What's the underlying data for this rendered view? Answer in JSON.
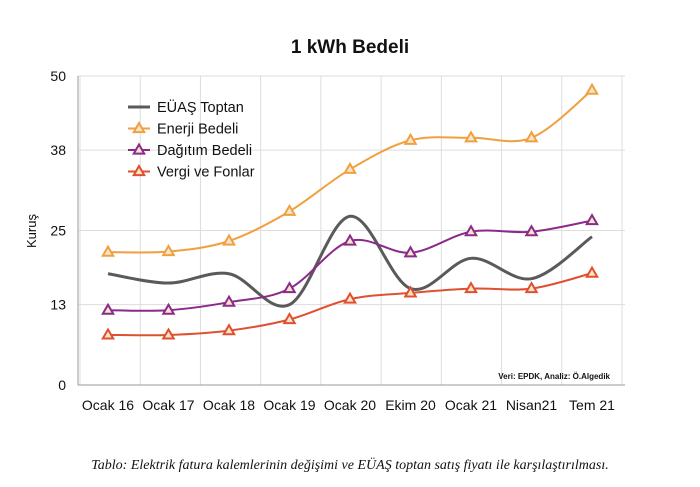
{
  "chart_data": {
    "type": "line",
    "title": "1 kWh Bedeli",
    "xlabel": "",
    "ylabel": "Kuruş",
    "categories": [
      "Ocak 16",
      "Ocak 17",
      "Ocak 18",
      "Ocak 19",
      "Ocak 20",
      "Ekim 20",
      "Ocak 21",
      "Nisan21",
      "Tem 21"
    ],
    "yticks": [
      0,
      13,
      25,
      38,
      50
    ],
    "ylim": [
      0,
      50
    ],
    "grid": true,
    "legend_position": "top-left",
    "series": [
      {
        "name": "EÜAŞ Toptan",
        "color": "#5a5a5a",
        "marker": "none",
        "values": [
          18,
          16.5,
          18,
          13,
          27.3,
          15.6,
          20.5,
          17.2,
          24
        ]
      },
      {
        "name": "Enerji Bedeli",
        "color": "#f0a040",
        "marker": "triangle",
        "values": [
          21.5,
          21.6,
          23.3,
          28.1,
          34.9,
          39.6,
          40,
          40,
          47.7
        ]
      },
      {
        "name": "Dağıtım Bedeli",
        "color": "#8b2a8b",
        "marker": "triangle",
        "values": [
          12.1,
          12.1,
          13.4,
          15.6,
          23.3,
          21.4,
          24.8,
          24.8,
          26.6
        ]
      },
      {
        "name": "Vergi ve Fonlar",
        "color": "#e05030",
        "marker": "triangle",
        "values": [
          8.1,
          8.1,
          8.8,
          10.6,
          13.9,
          14.9,
          15.6,
          15.6,
          18.1
        ]
      }
    ],
    "source_note": "Veri: EPDK, Analiz: Ö.Algedik"
  },
  "caption": "Tablo: Elektrik fatura kalemlerinin değişimi ve EÜAŞ toptan satış fiyatı ile karşılaştırılması."
}
